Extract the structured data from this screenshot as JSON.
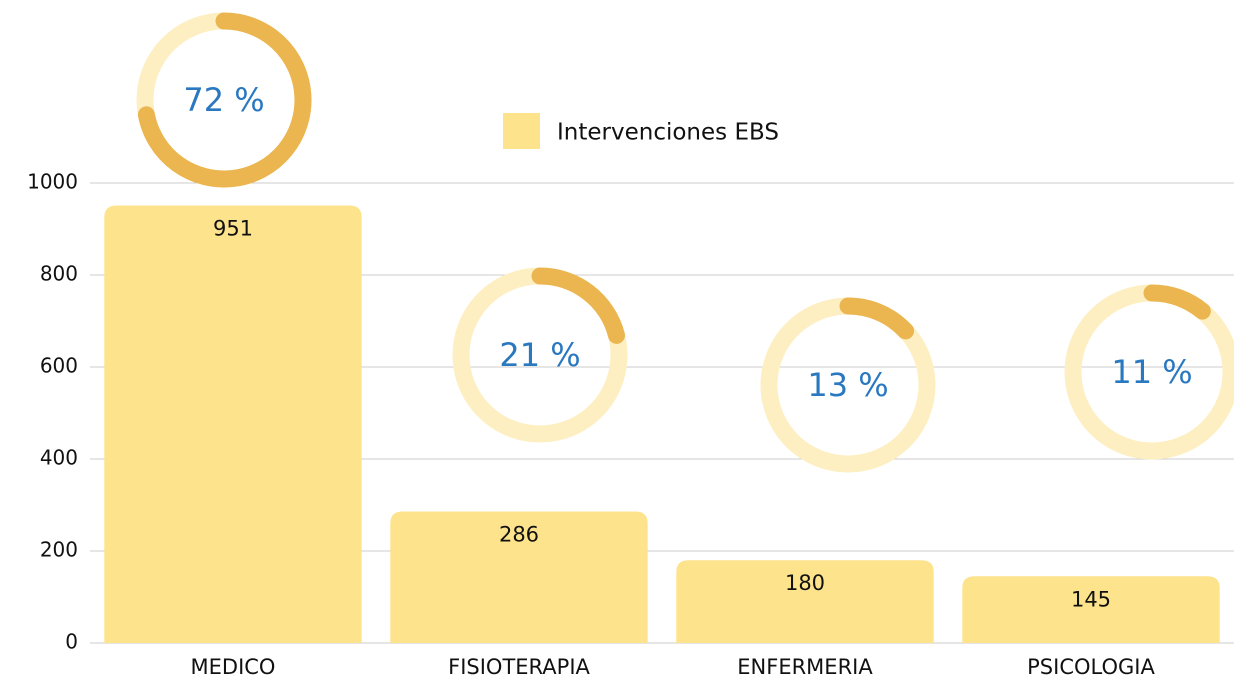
{
  "chart_data": {
    "type": "bar",
    "categories": [
      "MEDICO",
      "FISIOTERAPIA",
      "ENFERMERIA",
      "PSICOLOGIA"
    ],
    "series": [
      {
        "name": "Intervenciones EBS",
        "color": "#fde38b",
        "values": [
          951,
          286,
          180,
          145
        ]
      }
    ],
    "ylim": [
      0,
      1000
    ],
    "yticks": [
      0,
      200,
      400,
      600,
      800,
      1000
    ],
    "grid": true,
    "donuts": {
      "values": [
        72,
        21,
        13,
        11
      ],
      "value_labels": [
        "72 %",
        "21 %",
        "13 %",
        "11 %"
      ],
      "color": "#ebb550",
      "track_color": "#fdefc2"
    }
  }
}
